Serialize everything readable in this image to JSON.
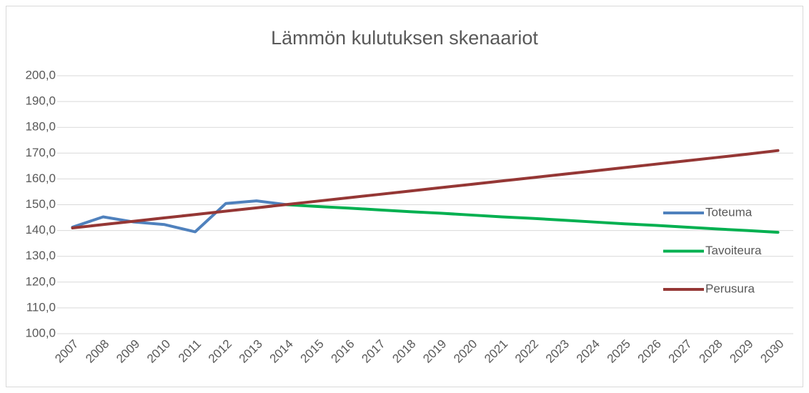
{
  "chart_data": {
    "type": "line",
    "title": "Lämmön kulutuksen skenaariot",
    "categories": [
      "2007",
      "2008",
      "2009",
      "2010",
      "2011",
      "2012",
      "2013",
      "2014",
      "2015",
      "2016",
      "2017",
      "2018",
      "2019",
      "2020",
      "2021",
      "2022",
      "2023",
      "2024",
      "2025",
      "2026",
      "2027",
      "2028",
      "2029",
      "2030"
    ],
    "series": [
      {
        "name": "Toteuma",
        "color": "#4f81bd",
        "values": [
          141.3,
          145.3,
          143.3,
          142.3,
          139.5,
          150.5,
          151.5,
          150.0,
          null,
          null,
          null,
          null,
          null,
          null,
          null,
          null,
          null,
          null,
          null,
          null,
          null,
          null,
          null,
          null
        ]
      },
      {
        "name": "Tavoiteura",
        "color": "#00b050",
        "values": [
          null,
          null,
          null,
          null,
          null,
          null,
          null,
          150.0,
          149.3,
          148.7,
          148.0,
          147.3,
          146.7,
          146.0,
          145.3,
          144.7,
          144.0,
          143.3,
          142.6,
          142.0,
          141.3,
          140.6,
          140.0,
          139.3
        ]
      },
      {
        "name": "Perusura",
        "color": "#953735",
        "values": [
          141.0,
          142.3,
          143.6,
          144.9,
          146.2,
          147.5,
          148.8,
          150.1,
          151.4,
          152.7,
          154.0,
          155.3,
          156.6,
          157.9,
          159.2,
          160.5,
          161.8,
          163.1,
          164.4,
          165.7,
          167.0,
          168.3,
          169.6,
          171.0
        ]
      }
    ],
    "ylim": [
      100,
      200
    ],
    "yticks": [
      {
        "value": 100,
        "label": "100,0"
      },
      {
        "value": 110,
        "label": "110,0"
      },
      {
        "value": 120,
        "label": "120,0"
      },
      {
        "value": 130,
        "label": "130,0"
      },
      {
        "value": 140,
        "label": "140,0"
      },
      {
        "value": 150,
        "label": "150,0"
      },
      {
        "value": 160,
        "label": "160,0"
      },
      {
        "value": 170,
        "label": "170,0"
      },
      {
        "value": 180,
        "label": "180,0"
      },
      {
        "value": 190,
        "label": "190,0"
      },
      {
        "value": 200,
        "label": "200,0"
      }
    ],
    "grid": true,
    "legend": "right"
  }
}
